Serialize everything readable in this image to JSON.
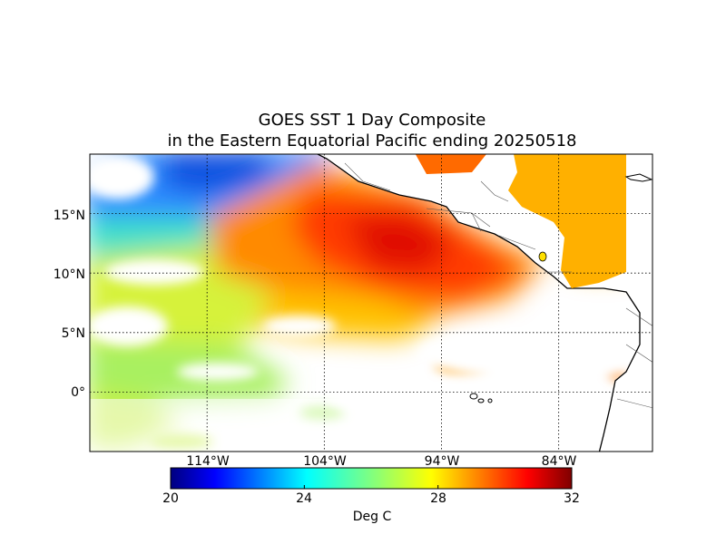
{
  "title": {
    "line1": "GOES SST 1 Day Composite",
    "line2": "in the Eastern Equatorial Pacific ending 20250518"
  },
  "map": {
    "lon_range": [
      -124,
      -76
    ],
    "lat_range": [
      -5,
      20
    ],
    "gridlines": true,
    "lat_ticks": [
      {
        "value": 15,
        "label": "15°N"
      },
      {
        "value": 10,
        "label": "10°N"
      },
      {
        "value": 5,
        "label": "5°N"
      },
      {
        "value": 0,
        "label": "0°"
      }
    ],
    "lon_ticks": [
      {
        "value": -114,
        "label": "114°W"
      },
      {
        "value": -104,
        "label": "104°W"
      },
      {
        "value": -94,
        "label": "94°W"
      },
      {
        "value": -84,
        "label": "84°W"
      }
    ]
  },
  "colorbar": {
    "min": 20,
    "max": 32,
    "ticks": [
      "20",
      "24",
      "28",
      "32"
    ],
    "label": "Deg C",
    "colormap": "jet",
    "colors": [
      "#00007f",
      "#0000ff",
      "#0080ff",
      "#00ffff",
      "#80ff80",
      "#ffff00",
      "#ff8000",
      "#ff0000",
      "#7f0000"
    ]
  }
}
